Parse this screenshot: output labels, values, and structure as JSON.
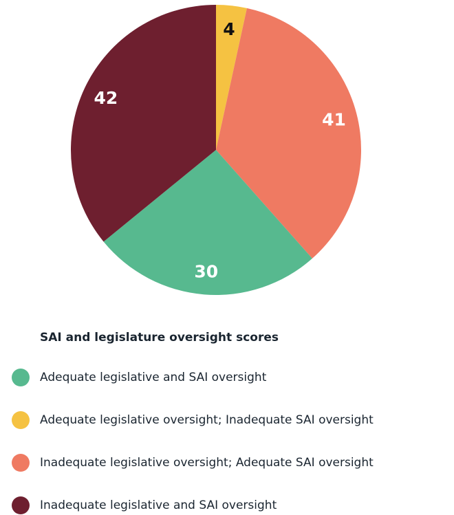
{
  "chart_data": {
    "type": "pie",
    "legend_title": "SAI and legislature oversight scores",
    "categories": [
      "Adequate legislative oversight; Inadequate SAI oversight",
      "Inadequate legislative oversight; Adequate SAI oversight",
      "Adequate legislative and SAI oversight",
      "Inadequate legislative and SAI oversight"
    ],
    "values": [
      4,
      41,
      30,
      42
    ],
    "colors": [
      "#f5c242",
      "#ef7a62",
      "#57b98f",
      "#6e1f2f"
    ],
    "label_colors": [
      "#111111",
      "#ffffff",
      "#ffffff",
      "#ffffff"
    ]
  }
}
